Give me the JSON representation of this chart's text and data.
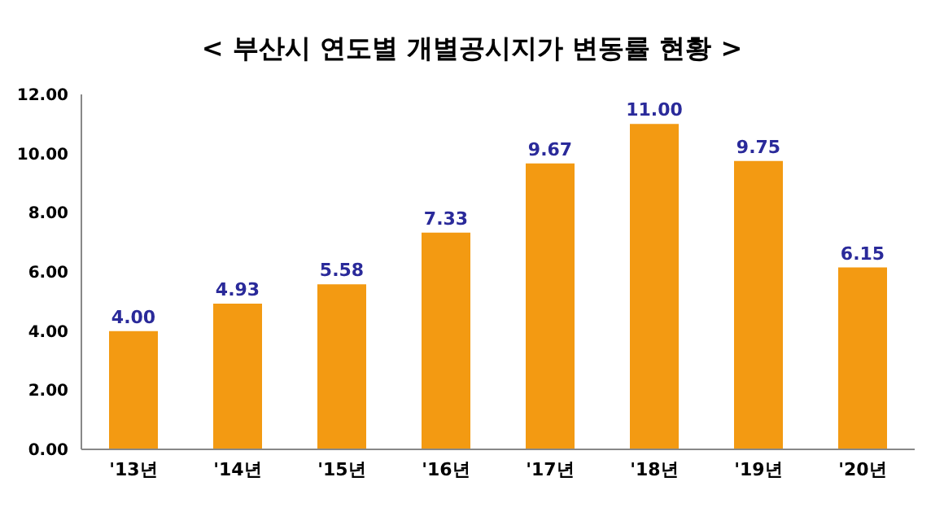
{
  "chart_data": {
    "type": "bar",
    "title": "< 부산시  연도별 개별공시지가 변동률 현황 >",
    "categories": [
      "'13년",
      "'14년",
      "'15년",
      "'16년",
      "'17년",
      "'18년",
      "'19년",
      "'20년"
    ],
    "values": [
      4.0,
      4.93,
      5.58,
      7.33,
      9.67,
      11.0,
      9.75,
      6.15
    ],
    "value_labels": [
      "4.00",
      "4.93",
      "5.58",
      "7.33",
      "9.67",
      "11.00",
      "9.75",
      "6.15"
    ],
    "color": "#f39a12",
    "ylim": [
      0,
      12
    ],
    "yticks": [
      {
        "value": 0,
        "label": "0.00"
      },
      {
        "value": 2,
        "label": "2.00"
      },
      {
        "value": 4,
        "label": "4.00"
      },
      {
        "value": 6,
        "label": "6.00"
      },
      {
        "value": 8,
        "label": "8.00"
      },
      {
        "value": 10,
        "label": "10.00"
      },
      {
        "value": 12,
        "label": "12.00"
      }
    ],
    "grid": false,
    "legend": false
  }
}
